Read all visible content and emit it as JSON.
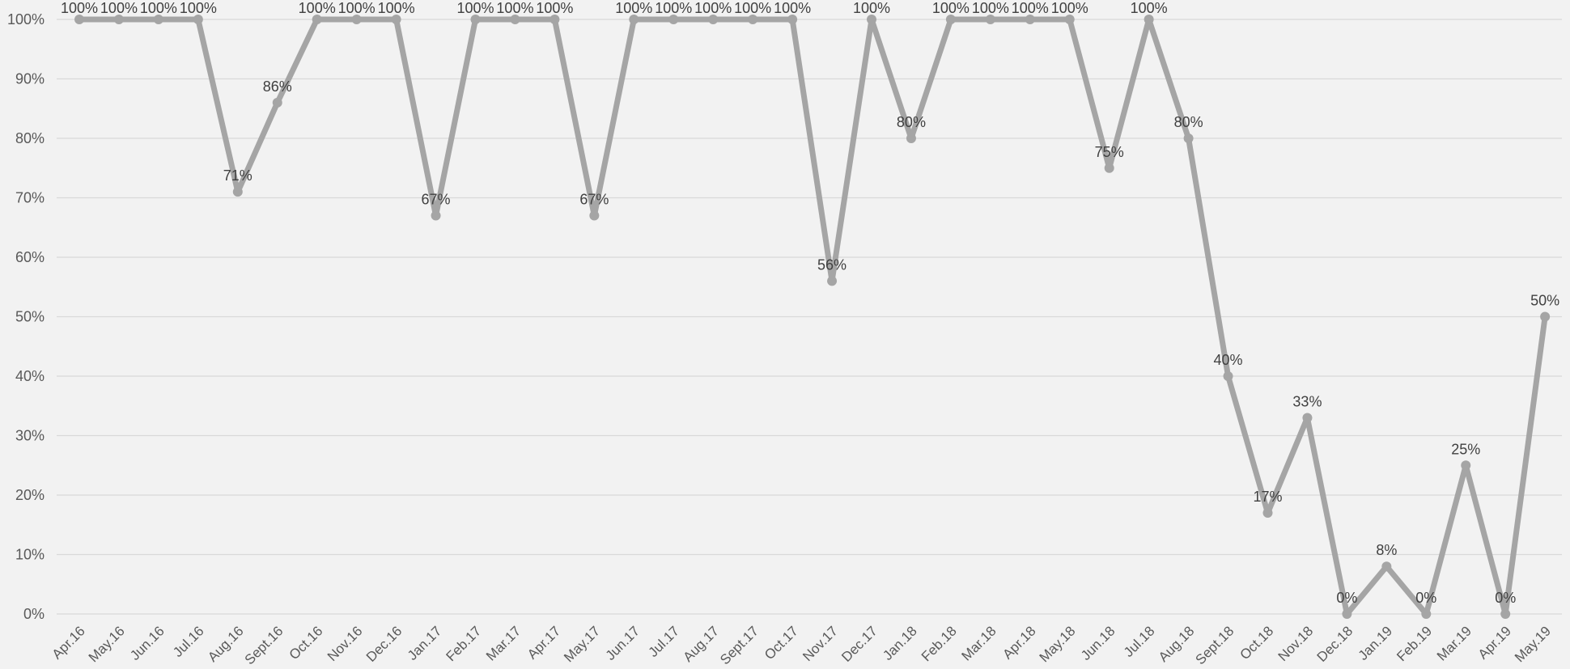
{
  "chart_data": {
    "type": "line",
    "title": "",
    "xlabel": "",
    "ylabel": "",
    "ylim": [
      0,
      100
    ],
    "y_ticks": [
      "0%",
      "10%",
      "20%",
      "30%",
      "40%",
      "50%",
      "60%",
      "70%",
      "80%",
      "90%",
      "100%"
    ],
    "grid": true,
    "legend": "none",
    "categories": [
      "Apr.16",
      "May.16",
      "Jun.16",
      "Jul.16",
      "Aug.16",
      "Sept.16",
      "Oct.16",
      "Nov.16",
      "Dec.16",
      "Jan.17",
      "Feb.17",
      "Mar.17",
      "Apr.17",
      "May.17",
      "Jun.17",
      "Jul.17",
      "Aug.17",
      "Sept.17",
      "Oct.17",
      "Nov.17",
      "Dec.17",
      "Jan.18",
      "Feb.18",
      "Mar.18",
      "Apr.18",
      "May.18",
      "Jun.18",
      "Jul.18",
      "Aug.18",
      "Sept.18",
      "Oct.18",
      "Nov.18",
      "Dec.18",
      "Jan.19",
      "Feb.19",
      "Mar.19",
      "Apr.19",
      "May.19"
    ],
    "series": [
      {
        "color": "#a5a5a5",
        "values": [
          100,
          100,
          100,
          100,
          71,
          86,
          100,
          100,
          100,
          67,
          100,
          100,
          100,
          67,
          100,
          100,
          100,
          100,
          100,
          56,
          100,
          80,
          100,
          100,
          100,
          100,
          75,
          100,
          80,
          40,
          17,
          33,
          0,
          8,
          0,
          25,
          0,
          50
        ],
        "data_labels": [
          "100%",
          "100%",
          "100%",
          "100%",
          "71%",
          "86%",
          "100%",
          "100%",
          "100%",
          "67%",
          "100%",
          "100%",
          "100%",
          "67%",
          "100%",
          "100%",
          "100%",
          "100%",
          "100%",
          "56%",
          "100%",
          "80%",
          "100%",
          "100%",
          "100%",
          "100%",
          "75%",
          "100%",
          "80%",
          "40%",
          "17%",
          "33%",
          "0%",
          "8%",
          "0%",
          "25%",
          "0%",
          "50%"
        ]
      }
    ]
  }
}
